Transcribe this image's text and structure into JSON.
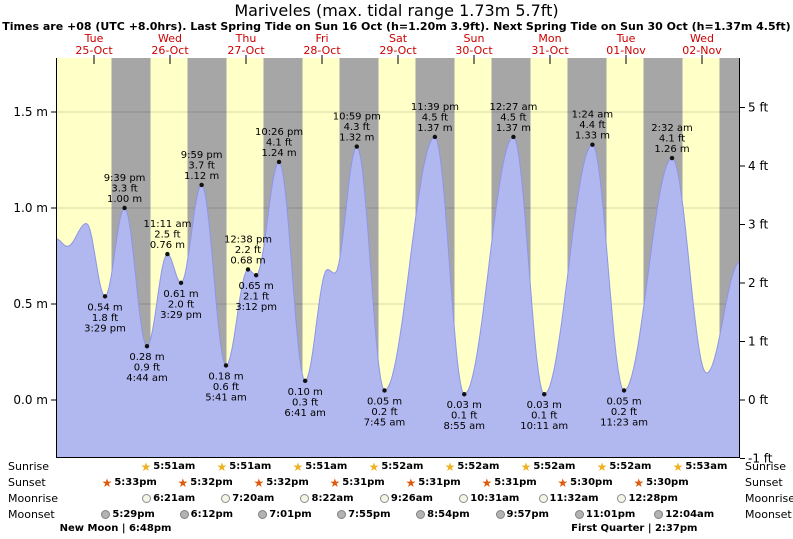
{
  "header": {
    "title": "Mariveles (max. tidal range 1.73m 5.7ft)",
    "subtitle": "Times are +08 (UTC +8.0hrs). Last Spring Tide on Sun 16 Oct (h=1.20m 3.9ft). Next Spring Tide on Sun 30 Oct (h=1.37m 4.5ft)"
  },
  "chart_data": {
    "type": "area",
    "title": "Mariveles (max. tidal range 1.73m 5.7ft)",
    "ylabel_left_unit": "m",
    "ylabel_right_unit": "ft",
    "ylim_m": [
      -0.3,
      1.8
    ],
    "grid": true,
    "days": [
      {
        "name": "Tue",
        "date": "25-Oct"
      },
      {
        "name": "Wed",
        "date": "26-Oct"
      },
      {
        "name": "Thu",
        "date": "27-Oct"
      },
      {
        "name": "Fri",
        "date": "28-Oct"
      },
      {
        "name": "Sat",
        "date": "29-Oct"
      },
      {
        "name": "Sun",
        "date": "30-Oct"
      },
      {
        "name": "Mon",
        "date": "31-Oct"
      },
      {
        "name": "Tue",
        "date": "01-Nov"
      },
      {
        "name": "Wed",
        "date": "02-Nov"
      }
    ],
    "y_left": [
      {
        "label": "1.5 m",
        "value": 1.5
      },
      {
        "label": "1.0 m",
        "value": 1.0
      },
      {
        "label": "0.5 m",
        "value": 0.5
      },
      {
        "label": "0.0 m",
        "value": 0.0
      }
    ],
    "y_right": [
      {
        "label": "5 ft",
        "value": 5
      },
      {
        "label": "4 ft",
        "value": 4
      },
      {
        "label": "3 ft",
        "value": 3
      },
      {
        "label": "2 ft",
        "value": 2
      },
      {
        "label": "1 ft",
        "value": 1
      },
      {
        "label": "0 ft",
        "value": 0
      },
      {
        "label": "-1 ft",
        "value": -1
      }
    ],
    "gridline_values_m": [
      0.0,
      0.5,
      1.0,
      1.5
    ],
    "tide_events": [
      {
        "day": 0,
        "type": "low",
        "time": "3:29 pm",
        "height_m": 0.54,
        "height_ft": 1.8,
        "hour": 15.483
      },
      {
        "day": 0,
        "type": "high",
        "time": "9:39 pm",
        "height_m": 1.0,
        "height_ft": 3.3,
        "hour": 21.65
      },
      {
        "day": 1,
        "type": "low",
        "time": "4:44 am",
        "height_m": 0.28,
        "height_ft": 0.9,
        "hour": 4.733
      },
      {
        "day": 1,
        "type": "high",
        "time": "11:11 am",
        "height_m": 0.76,
        "height_ft": 2.5,
        "hour": 11.183
      },
      {
        "day": 1,
        "type": "low",
        "time": "3:29 pm",
        "height_m": 0.61,
        "height_ft": 2.0,
        "hour": 15.483
      },
      {
        "day": 1,
        "type": "high",
        "time": "9:59 pm",
        "height_m": 1.12,
        "height_ft": 3.7,
        "hour": 21.983
      },
      {
        "day": 2,
        "type": "low",
        "time": "5:41 am",
        "height_m": 0.18,
        "height_ft": 0.6,
        "hour": 5.683
      },
      {
        "day": 2,
        "type": "high",
        "time": "12:38 pm",
        "height_m": 0.68,
        "height_ft": 2.2,
        "hour": 12.633
      },
      {
        "day": 2,
        "type": "low",
        "time": "3:12 pm",
        "height_m": 0.65,
        "height_ft": 2.1,
        "hour": 15.2
      },
      {
        "day": 2,
        "type": "high",
        "time": "10:26 pm",
        "height_m": 1.24,
        "height_ft": 4.1,
        "hour": 22.433
      },
      {
        "day": 3,
        "type": "low",
        "time": "6:41 am",
        "height_m": 0.1,
        "height_ft": 0.3,
        "hour": 6.683
      },
      {
        "day": 3,
        "type": "high",
        "time": "10:59 pm",
        "height_m": 1.32,
        "height_ft": 4.3,
        "hour": 22.983
      },
      {
        "day": 4,
        "type": "low",
        "time": "7:45 am",
        "height_m": 0.05,
        "height_ft": 0.2,
        "hour": 7.75
      },
      {
        "day": 4,
        "type": "high",
        "time": "11:39 pm",
        "height_m": 1.37,
        "height_ft": 4.5,
        "hour": 23.65
      },
      {
        "day": 5,
        "type": "low",
        "time": "8:55 am",
        "height_m": 0.03,
        "height_ft": 0.1,
        "hour": 8.917
      },
      {
        "day": 6,
        "type": "high",
        "time": "12:27 am",
        "height_m": 1.37,
        "height_ft": 4.5,
        "hour": 0.45
      },
      {
        "day": 6,
        "type": "low",
        "time": "10:11 am",
        "height_m": 0.03,
        "height_ft": 0.1,
        "hour": 10.183
      },
      {
        "day": 7,
        "type": "high",
        "time": "1:24 am",
        "height_m": 1.33,
        "height_ft": 4.4,
        "hour": 1.4
      },
      {
        "day": 7,
        "type": "low",
        "time": "11:23 am",
        "height_m": 0.05,
        "height_ft": 0.2,
        "hour": 11.383
      },
      {
        "day": 8,
        "type": "high",
        "time": "2:32 am",
        "height_m": 1.26,
        "height_ft": 4.1,
        "hour": 2.533
      }
    ],
    "curve_keypoints": [
      [
        0.0,
        0.84
      ],
      [
        0.15,
        0.8
      ],
      [
        0.4,
        0.92
      ],
      [
        0.645,
        0.54
      ],
      [
        0.902,
        1.0
      ],
      [
        1.197,
        0.28
      ],
      [
        1.466,
        0.76
      ],
      [
        1.645,
        0.61
      ],
      [
        1.916,
        1.12
      ],
      [
        2.237,
        0.18
      ],
      [
        2.526,
        0.68
      ],
      [
        2.633,
        0.65
      ],
      [
        2.935,
        1.24
      ],
      [
        3.278,
        0.1
      ],
      [
        3.57,
        0.68
      ],
      [
        3.67,
        0.66
      ],
      [
        3.958,
        1.32
      ],
      [
        4.323,
        0.05
      ],
      [
        4.985,
        1.37
      ],
      [
        5.372,
        0.03
      ],
      [
        6.019,
        1.37
      ],
      [
        6.424,
        0.03
      ],
      [
        7.058,
        1.33
      ],
      [
        7.474,
        0.05
      ],
      [
        8.106,
        1.26
      ],
      [
        8.56,
        0.14
      ],
      [
        9.0,
        0.72
      ]
    ],
    "sun": {
      "sunrise_hour": 5.85,
      "sunset_hour": 17.53
    },
    "colors": {
      "day_bg": "#ffffc8",
      "night_bg": "#a6a6a6",
      "tide_fill": "#b1b7ef",
      "tide_stroke": "#8d96e8",
      "date_label": "#cc0000",
      "grid": "rgba(0,0,0,0.15)"
    }
  },
  "astro": {
    "rows": [
      {
        "label": "Sunrise",
        "type": "sunrise",
        "icon": "star",
        "icon_color": "#edb21f",
        "entries": [
          {
            "time": "5:51am",
            "day": 1,
            "hour": 5.85
          },
          {
            "time": "5:51am",
            "day": 2,
            "hour": 5.85
          },
          {
            "time": "5:51am",
            "day": 3,
            "hour": 5.85
          },
          {
            "time": "5:52am",
            "day": 4,
            "hour": 5.867
          },
          {
            "time": "5:52am",
            "day": 5,
            "hour": 5.867
          },
          {
            "time": "5:52am",
            "day": 6,
            "hour": 5.867
          },
          {
            "time": "5:52am",
            "day": 7,
            "hour": 5.867
          },
          {
            "time": "5:53am",
            "day": 8,
            "hour": 5.883
          }
        ]
      },
      {
        "label": "Sunset",
        "type": "sunset",
        "icon": "star",
        "icon_color": "#dd5a10",
        "entries": [
          {
            "time": "5:33pm",
            "day": 0,
            "hour": 17.55
          },
          {
            "time": "5:32pm",
            "day": 1,
            "hour": 17.533
          },
          {
            "time": "5:32pm",
            "day": 2,
            "hour": 17.533
          },
          {
            "time": "5:31pm",
            "day": 3,
            "hour": 17.517
          },
          {
            "time": "5:31pm",
            "day": 4,
            "hour": 17.517
          },
          {
            "time": "5:31pm",
            "day": 5,
            "hour": 17.517
          },
          {
            "time": "5:30pm",
            "day": 6,
            "hour": 17.5
          },
          {
            "time": "5:30pm",
            "day": 7,
            "hour": 17.5
          }
        ]
      },
      {
        "label": "Moonrise",
        "type": "moonrise",
        "icon": "circle",
        "icon_color": "#f5f5e6",
        "icon_border": "#8c8c8c",
        "entries": [
          {
            "time": "6:21am",
            "day": 1,
            "hour": 6.35
          },
          {
            "time": "7:20am",
            "day": 2,
            "hour": 7.333
          },
          {
            "time": "8:22am",
            "day": 3,
            "hour": 8.367
          },
          {
            "time": "9:26am",
            "day": 4,
            "hour": 9.433
          },
          {
            "time": "10:31am",
            "day": 5,
            "hour": 10.517
          },
          {
            "time": "11:32am",
            "day": 6,
            "hour": 11.533
          },
          {
            "time": "12:28pm",
            "day": 7,
            "hour": 12.467
          }
        ]
      },
      {
        "label": "Moonset",
        "type": "moonset",
        "icon": "circle",
        "icon_color": "#b3b3b3",
        "icon_border": "#808080",
        "entries": [
          {
            "time": "5:29pm",
            "day": 0,
            "hour": 17.483
          },
          {
            "time": "6:12pm",
            "day": 1,
            "hour": 18.2
          },
          {
            "time": "7:01pm",
            "day": 2,
            "hour": 19.017
          },
          {
            "time": "7:55pm",
            "day": 3,
            "hour": 19.917
          },
          {
            "time": "8:54pm",
            "day": 4,
            "hour": 20.9
          },
          {
            "time": "9:57pm",
            "day": 5,
            "hour": 21.95
          },
          {
            "time": "11:01pm",
            "day": 6,
            "hour": 23.017
          },
          {
            "time": "12:04am",
            "day": 8,
            "hour": 0.067
          }
        ]
      }
    ],
    "phases": [
      {
        "name": "New Moon",
        "time": "6:48pm",
        "day": 0,
        "hour": 18.8
      },
      {
        "name": "First Quarter",
        "time": "2:37pm",
        "day": 7,
        "hour": 14.617
      }
    ]
  }
}
